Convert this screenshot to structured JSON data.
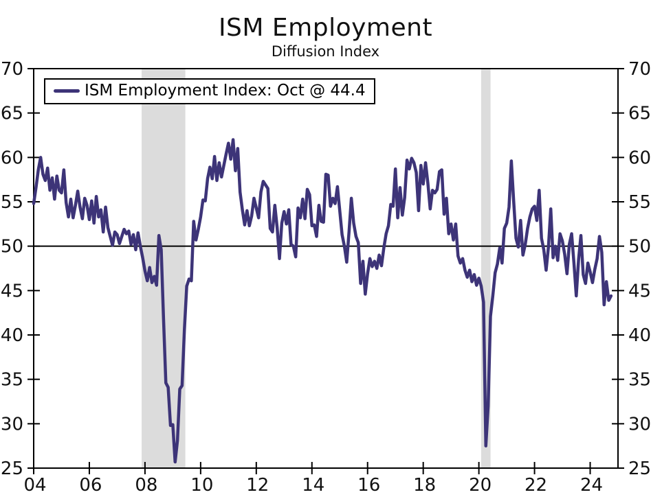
{
  "chart": {
    "title": "ISM Employment",
    "subtitle": "Diffusion Index",
    "legend_label": "ISM Employment Index: Oct @ 44.4"
  },
  "colors": {
    "line": "#3D3478",
    "recession_band": "#DCDCDC",
    "reference_line": "#000000",
    "axis": "#000000",
    "text": "#111111"
  },
  "chart_data": {
    "type": "line",
    "title": "ISM Employment",
    "subtitle": "Diffusion Index",
    "legend": [
      {
        "entry": "ISM Employment Index: Oct @ 44.4",
        "position": "top-left"
      }
    ],
    "xlabel": "",
    "ylabel": "",
    "x_range": [
      2004.0,
      2025.0
    ],
    "y_range": [
      25,
      70
    ],
    "grid": false,
    "reference_line": 50,
    "y_ticks": [
      25,
      30,
      35,
      40,
      45,
      50,
      55,
      60,
      65,
      70
    ],
    "y_tick_labels_left": [
      "25",
      "30",
      "35",
      "40",
      "45",
      "50",
      "55",
      "60",
      "65",
      "70"
    ],
    "y_tick_labels_right": [
      "25",
      "30",
      "35",
      "40",
      "45",
      "50",
      "55",
      "60",
      "65",
      "70"
    ],
    "x_ticks": [
      2004,
      2006,
      2008,
      2010,
      2012,
      2014,
      2016,
      2018,
      2020,
      2022,
      2024
    ],
    "x_tick_labels": [
      "04",
      "06",
      "08",
      "10",
      "12",
      "14",
      "16",
      "18",
      "20",
      "22",
      "24"
    ],
    "recessions": [
      {
        "start": 2007.88,
        "end": 2009.45
      },
      {
        "start": 2020.08,
        "end": 2020.42
      }
    ],
    "series": [
      {
        "name": "ISM Employment Index",
        "frequency": "monthly",
        "start_period": "2004-01",
        "end_period": "2024-10",
        "last_point_label": "Oct @ 44.4",
        "values": [
          54.8,
          56.6,
          58.6,
          60.0,
          58.1,
          57.4,
          58.8,
          56.3,
          57.7,
          55.3,
          57.9,
          56.3,
          56.0,
          58.6,
          54.9,
          53.3,
          55.3,
          53.2,
          54.6,
          56.2,
          54.4,
          53.1,
          55.4,
          54.6,
          53.0,
          55.1,
          52.6,
          55.6,
          53.3,
          54.1,
          51.6,
          54.4,
          52.1,
          51.1,
          50.1,
          51.6,
          51.3,
          50.3,
          51.1,
          51.9,
          51.4,
          51.7,
          50.2,
          51.3,
          49.6,
          51.5,
          50.0,
          48.7,
          47.2,
          46.1,
          47.6,
          45.9,
          46.6,
          45.6,
          51.2,
          49.6,
          41.8,
          34.6,
          34.1,
          29.8,
          29.9,
          25.7,
          28.1,
          33.9,
          34.3,
          40.6,
          45.5,
          46.3,
          46.1,
          52.8,
          50.7,
          51.9,
          53.3,
          55.2,
          55.1,
          57.6,
          58.9,
          57.6,
          60.1,
          57.4,
          59.4,
          57.8,
          59.1,
          60.4,
          61.6,
          59.8,
          62.0,
          58.5,
          61.0,
          56.1,
          54.1,
          52.4,
          54.0,
          52.3,
          53.4,
          55.4,
          54.3,
          53.2,
          56.1,
          57.3,
          56.9,
          56.5,
          52.0,
          51.6,
          54.6,
          52.1,
          48.6,
          52.6,
          53.9,
          52.5,
          54.1,
          50.2,
          50.0,
          48.8,
          54.3,
          53.2,
          55.3,
          53.1,
          56.4,
          55.8,
          52.3,
          52.4,
          51.1,
          54.6,
          52.8,
          52.7,
          58.1,
          58.0,
          54.5,
          55.4,
          54.8,
          56.7,
          54.0,
          51.3,
          50.0,
          48.2,
          51.6,
          55.4,
          52.6,
          51.1,
          50.4,
          45.8,
          48.3,
          44.6,
          46.9,
          48.6,
          47.7,
          48.3,
          47.5,
          49.0,
          47.8,
          49.8,
          51.4,
          52.3,
          54.7,
          54.5,
          58.7,
          53.2,
          56.6,
          53.5,
          55.5,
          59.7,
          58.7,
          59.9,
          59.4,
          58.3,
          54.0,
          59.1,
          57.0,
          59.4,
          57.1,
          54.2,
          56.3,
          56.0,
          56.4,
          58.4,
          58.6,
          53.6,
          55.4,
          51.4,
          52.5,
          50.7,
          52.5,
          48.9,
          48.1,
          48.6,
          47.3,
          46.5,
          47.3,
          46.0,
          46.8,
          45.6,
          46.4,
          45.5,
          43.7,
          27.5,
          32.0,
          42.1,
          44.4,
          47.0,
          48.0,
          49.8,
          48.1,
          52.0,
          52.6,
          54.4,
          59.6,
          55.1,
          50.9,
          49.9,
          52.9,
          49.0,
          50.2,
          52.0,
          53.3,
          54.2,
          54.5,
          52.9,
          56.3,
          50.9,
          49.6,
          47.3,
          49.9,
          54.2,
          48.7,
          50.0,
          48.4,
          51.4,
          50.6,
          49.1,
          46.9,
          50.2,
          51.4,
          48.1,
          44.4,
          48.5,
          51.2,
          46.8,
          45.8,
          48.1,
          47.1,
          45.9,
          47.4,
          48.6,
          51.1,
          49.3,
          43.4,
          46.0,
          43.9,
          44.4
        ]
      }
    ]
  }
}
